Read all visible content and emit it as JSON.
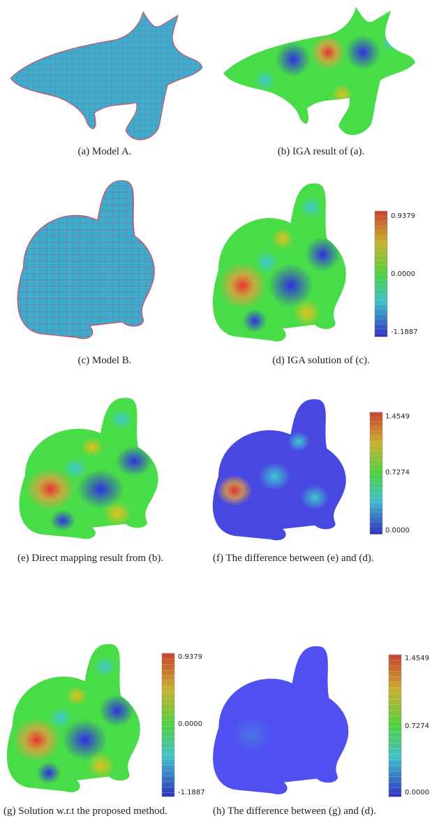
{
  "panels": [
    {
      "caption": "(a) Model A."
    },
    {
      "caption": "(b) IGA result of (a)."
    },
    {
      "caption": "(c) Model B."
    },
    {
      "caption": "(d) IGA solution of (c).",
      "colorbar": [
        "0.9379",
        "0.0000",
        "-1.1887"
      ]
    },
    {
      "caption": "(e) Direct mapping result from (b)."
    },
    {
      "caption": "(f) The difference between (e) and (d).",
      "colorbar": [
        "1.4549",
        "0.7274",
        "0.0000"
      ]
    },
    {
      "caption": "(g) Solution w.r.t the proposed method.",
      "colorbar": [
        "0.9379",
        "0.0000",
        "-1.1887"
      ]
    },
    {
      "caption": "(h) The difference between (g) and (d).",
      "colorbar": [
        "1.4549",
        "0.7274",
        "0.0000"
      ]
    }
  ]
}
